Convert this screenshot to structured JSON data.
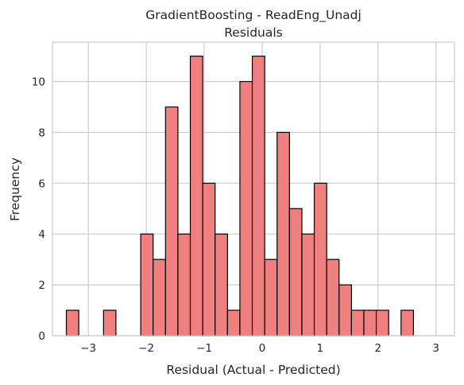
{
  "chart_data": {
    "type": "histogram",
    "title": "GradientBoosting - ReadEng_Unadj",
    "subtitle": "Residuals",
    "xlabel": "Residual (Actual - Predicted)",
    "ylabel": "Frequency",
    "xlim": [
      -3.62,
      3.32
    ],
    "ylim": [
      0,
      11.55
    ],
    "xticks": [
      -3,
      -2,
      -1,
      0,
      1,
      2,
      3
    ],
    "xtick_labels": [
      "−3",
      "−2",
      "−1",
      "0",
      "1",
      "2",
      "3"
    ],
    "yticks": [
      0,
      2,
      4,
      6,
      8,
      10
    ],
    "grid": true,
    "bar_color": "#f08080",
    "edge_color": "#000000",
    "bin_start": -3.38,
    "bin_width": 0.214,
    "counts": [
      1,
      0,
      0,
      1,
      0,
      0,
      4,
      3,
      9,
      4,
      11,
      6,
      4,
      1,
      10,
      11,
      3,
      8,
      5,
      4,
      6,
      3,
      2,
      1,
      1,
      1,
      0,
      1
    ]
  }
}
